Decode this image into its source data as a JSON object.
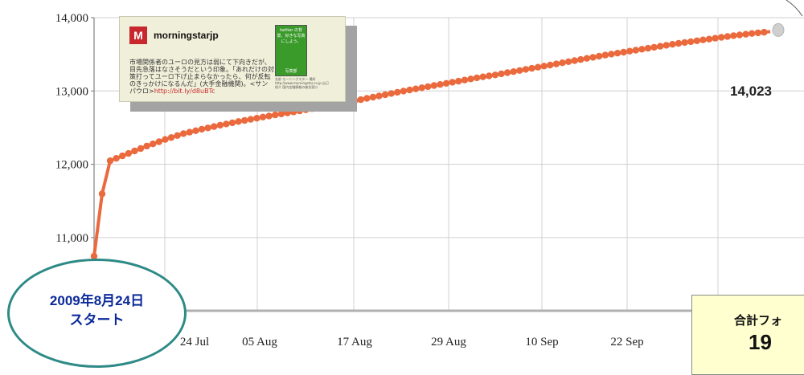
{
  "chart_data": {
    "type": "line",
    "y_ticks": [
      "14,000",
      "13,000",
      "12,000",
      "11,000"
    ],
    "x_ticks": [
      "24 Jul",
      "05 Aug",
      "17 Aug",
      "29 Aug",
      "10 Sep",
      "22 Sep"
    ],
    "ylim": [
      10000,
      14200
    ],
    "grid": true,
    "series": [
      {
        "color": "#ea6a3e",
        "values": [
          10750,
          11600,
          12050,
          12150,
          12250,
          12340,
          12420,
          12480,
          12535,
          12585,
          12630,
          12675,
          12715,
          12760,
          12800,
          12850,
          12900,
          12950,
          13000,
          13045,
          13090,
          13135,
          13180,
          13220,
          13265,
          13310,
          13355,
          13400,
          13445,
          13490,
          13530,
          13570,
          13610,
          13650,
          13685,
          13720,
          13755,
          13785,
          13810
        ]
      }
    ],
    "end_value_label": "14,023"
  },
  "tweet_card": {
    "username": "morningstarjp",
    "logo_text": "M",
    "text": "市場関係者のユーロの見方は弱にて下向きだが、目先急落はなさそうだという印象。「あれだけの対策打ってユーロ下げ止まらなかったら、何が反転のきっかけになるんだ」(大手金融機関)。<サンパウロ>",
    "link": "http://bit.ly/d8uBTc",
    "ad_top": "twitter の背景、好きな写真にしよう。",
    "ad_bottom": "写真部",
    "profile": "名前 モーニングスター 場所 http://www.morningstar.co.jp 自己紹介 国内金融情報の総合窓口"
  },
  "start_label": {
    "line1": "2009年8月24日",
    "line2": "スタート"
  },
  "total_box": {
    "label": "合計フォ",
    "value": "19"
  },
  "colors": {
    "line": "#ea6a3e",
    "start_border": "#2e8a86",
    "start_text": "#0b2a99",
    "total_bg": "#ffffd0"
  }
}
